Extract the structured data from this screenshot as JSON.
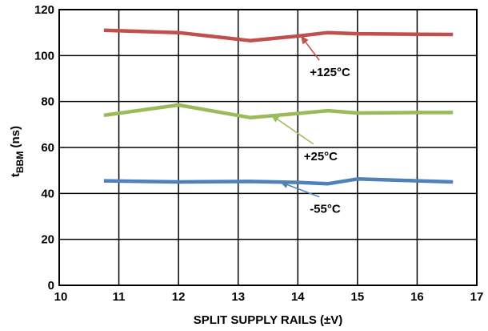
{
  "chart_data": {
    "type": "line",
    "xlabel": "SPLIT SUPPLY RAILS (±V)",
    "ylabel_main": "t",
    "ylabel_sub": "BBM",
    "ylabel_unit": " (ns)",
    "xlim": [
      10,
      17
    ],
    "ylim": [
      0,
      120
    ],
    "xticks": [
      10,
      11,
      12,
      13,
      14,
      15,
      16,
      17
    ],
    "yticks": [
      0,
      20,
      40,
      60,
      80,
      100,
      120
    ],
    "grid": true,
    "series": [
      {
        "name": "+125°C",
        "color": "#c0504d",
        "x": [
          10.75,
          12.0,
          13.2,
          14.0,
          14.5,
          15.0,
          16.0,
          16.6
        ],
        "y": [
          111,
          110,
          106.5,
          108.5,
          110,
          109.5,
          109.3,
          109.2
        ]
      },
      {
        "name": "+25°C",
        "color": "#9bbb59",
        "x": [
          10.75,
          12.0,
          13.2,
          14.0,
          14.5,
          15.0,
          16.0,
          16.6
        ],
        "y": [
          74,
          78.5,
          73,
          74.8,
          76,
          75,
          75.2,
          75.2
        ]
      },
      {
        "name": "-55°C",
        "color": "#4f81bd",
        "x": [
          10.75,
          12.0,
          13.2,
          14.0,
          14.5,
          15.0,
          16.0,
          16.6
        ],
        "y": [
          45.5,
          45,
          45.2,
          44.8,
          44.2,
          46.3,
          45.5,
          45
        ]
      }
    ],
    "annotations": [
      {
        "text": "+125°C",
        "series": 0,
        "label_x": 14.2,
        "label_y": 91,
        "arrow_tip_x": 14.05,
        "arrow_tip_y": 108.6
      },
      {
        "text": "+25°C",
        "series": 1,
        "label_x": 14.1,
        "label_y": 54.5,
        "arrow_tip_x": 13.55,
        "arrow_tip_y": 74.2
      },
      {
        "text": "-55°C",
        "series": 2,
        "label_x": 14.2,
        "label_y": 31.5,
        "arrow_tip_x": 13.7,
        "arrow_tip_y": 45
      }
    ]
  }
}
